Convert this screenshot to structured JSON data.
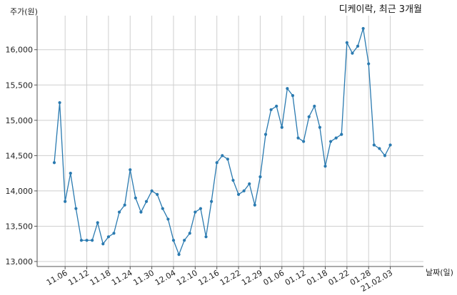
{
  "chart_data": {
    "type": "line",
    "title": "디케이락, 최근 3개월",
    "xlabel": "날짜(일)",
    "ylabel": "주가(원)",
    "ylim": [
      13000,
      16300
    ],
    "yticks": [
      13000,
      13500,
      14000,
      14500,
      15000,
      15500,
      16000
    ],
    "ytick_labels": [
      "13,000",
      "13,500",
      "14,000",
      "14,500",
      "15,000",
      "15,500",
      "16,000"
    ],
    "x_tick_labels": [
      "11.06",
      "11.12",
      "11.18",
      "11.24",
      "11.30",
      "12.04",
      "12.10",
      "12.16",
      "12.22",
      "12.29",
      "01.06",
      "01.12",
      "01.18",
      "01.22",
      "01.28",
      "21.02.03"
    ],
    "x_tick_index": [
      2,
      6,
      10,
      14,
      18,
      22,
      26,
      30,
      34,
      38,
      42,
      46,
      50,
      54,
      58,
      62
    ],
    "grid": true,
    "color": "#2a7ab0",
    "series": [
      {
        "values": [
          14400,
          15250,
          13850,
          14250,
          13750,
          13300,
          13300,
          13300,
          13550,
          13250,
          13350,
          13400,
          13700,
          13800,
          14300,
          13900,
          13700,
          13850,
          14000,
          13950,
          13750,
          13600,
          13300,
          13100,
          13300,
          13400,
          13700,
          13750,
          13350,
          13850,
          14400,
          14500,
          14450,
          14150,
          13950,
          14000,
          14100,
          13800,
          14200,
          14800,
          15150,
          15200,
          14900,
          15450,
          15350,
          14750,
          14700,
          15050,
          15200,
          14900,
          14350,
          14700,
          14750,
          14800,
          16100,
          15950,
          16050,
          16300,
          15800,
          14650,
          14600,
          14500,
          14650
        ]
      }
    ]
  }
}
